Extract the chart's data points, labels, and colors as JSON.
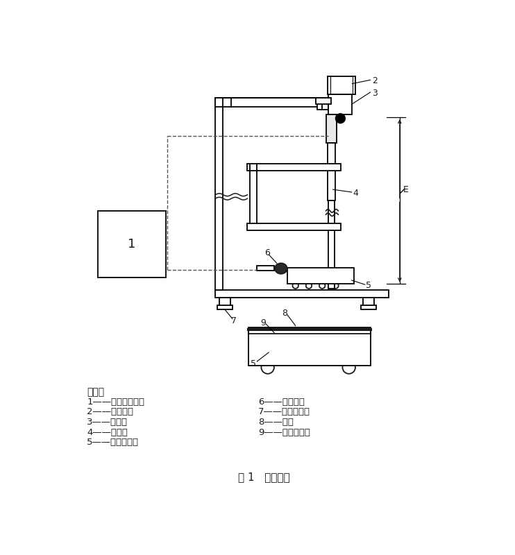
{
  "title": "图 1   落球设备",
  "background_color": "#ffffff",
  "line_color": "#1a1a1a",
  "dashed_color": "#555555",
  "legend_left": [
    "说明：",
    "1——电子计时器；",
    "2——电磁铁；",
    "3——锢球；",
    "4——导管；",
    "5——混凝土块；"
  ],
  "legend_right": [
    "6——麦克风；",
    "7——水平旋鈕；",
    "8——砖；",
    "9——环氧树脂。"
  ]
}
